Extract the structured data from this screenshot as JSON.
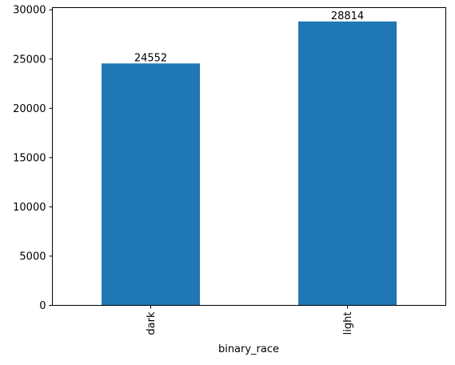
{
  "chart_data": {
    "type": "bar",
    "categories": [
      "dark",
      "light"
    ],
    "values": [
      24552,
      28814
    ],
    "data_labels": [
      "24552",
      "28814"
    ],
    "xlabel": "binary_race",
    "ylabel": "",
    "title": "",
    "ylim": [
      0,
      30220
    ],
    "yticks": [
      0,
      5000,
      10000,
      15000,
      20000,
      25000,
      30000
    ],
    "ytick_labels": [
      "0",
      "5000",
      "10000",
      "15000",
      "20000",
      "25000",
      "30000"
    ],
    "grid": false,
    "legend": "none",
    "bar_color": "#1f77b4",
    "x_tick_rotation": "vertical"
  }
}
